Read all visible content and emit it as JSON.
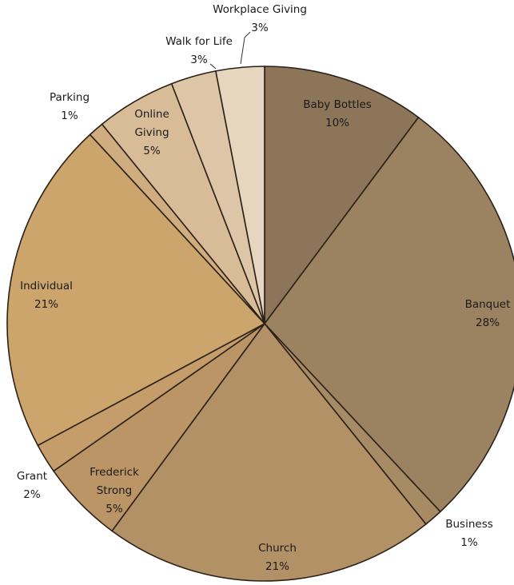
{
  "chart_data": {
    "type": "pie",
    "title": "",
    "start_angle_deg": 0,
    "direction": "clockwise",
    "slices": [
      {
        "label": "Baby Bottles",
        "pct_label": "10%",
        "value": 10.4,
        "color": "#8c7558"
      },
      {
        "label": "Banquet",
        "pct_label": "28%",
        "value": 28.4,
        "color": "#9b8260"
      },
      {
        "label": "Business",
        "pct_label": "1%",
        "value": 1.2,
        "color": "#a78b64"
      },
      {
        "label": "Church",
        "pct_label": "21%",
        "value": 21.3,
        "color": "#b39166"
      },
      {
        "label": "Frederick Strong",
        "pct_label": "5%",
        "value": 5.3,
        "color": "#bb9566"
      },
      {
        "label": "Grant",
        "pct_label": "2%",
        "value": 1.9,
        "color": "#c49d6a"
      },
      {
        "label": "Individual",
        "pct_label": "21%",
        "value": 21.4,
        "color": "#cca56c"
      },
      {
        "label": "Parking",
        "pct_label": "1%",
        "value": 1.0,
        "color": "#cfad7f"
      },
      {
        "label": "Online Giving",
        "pct_label": "5%",
        "value": 5.1,
        "color": "#d8bc97"
      },
      {
        "label": "Walk for Life",
        "pct_label": "3%",
        "value": 2.9,
        "color": "#ddc6a8"
      },
      {
        "label": "Workplace Giving",
        "pct_label": "3%",
        "value": 3.1,
        "color": "#e6d5bf"
      }
    ]
  }
}
